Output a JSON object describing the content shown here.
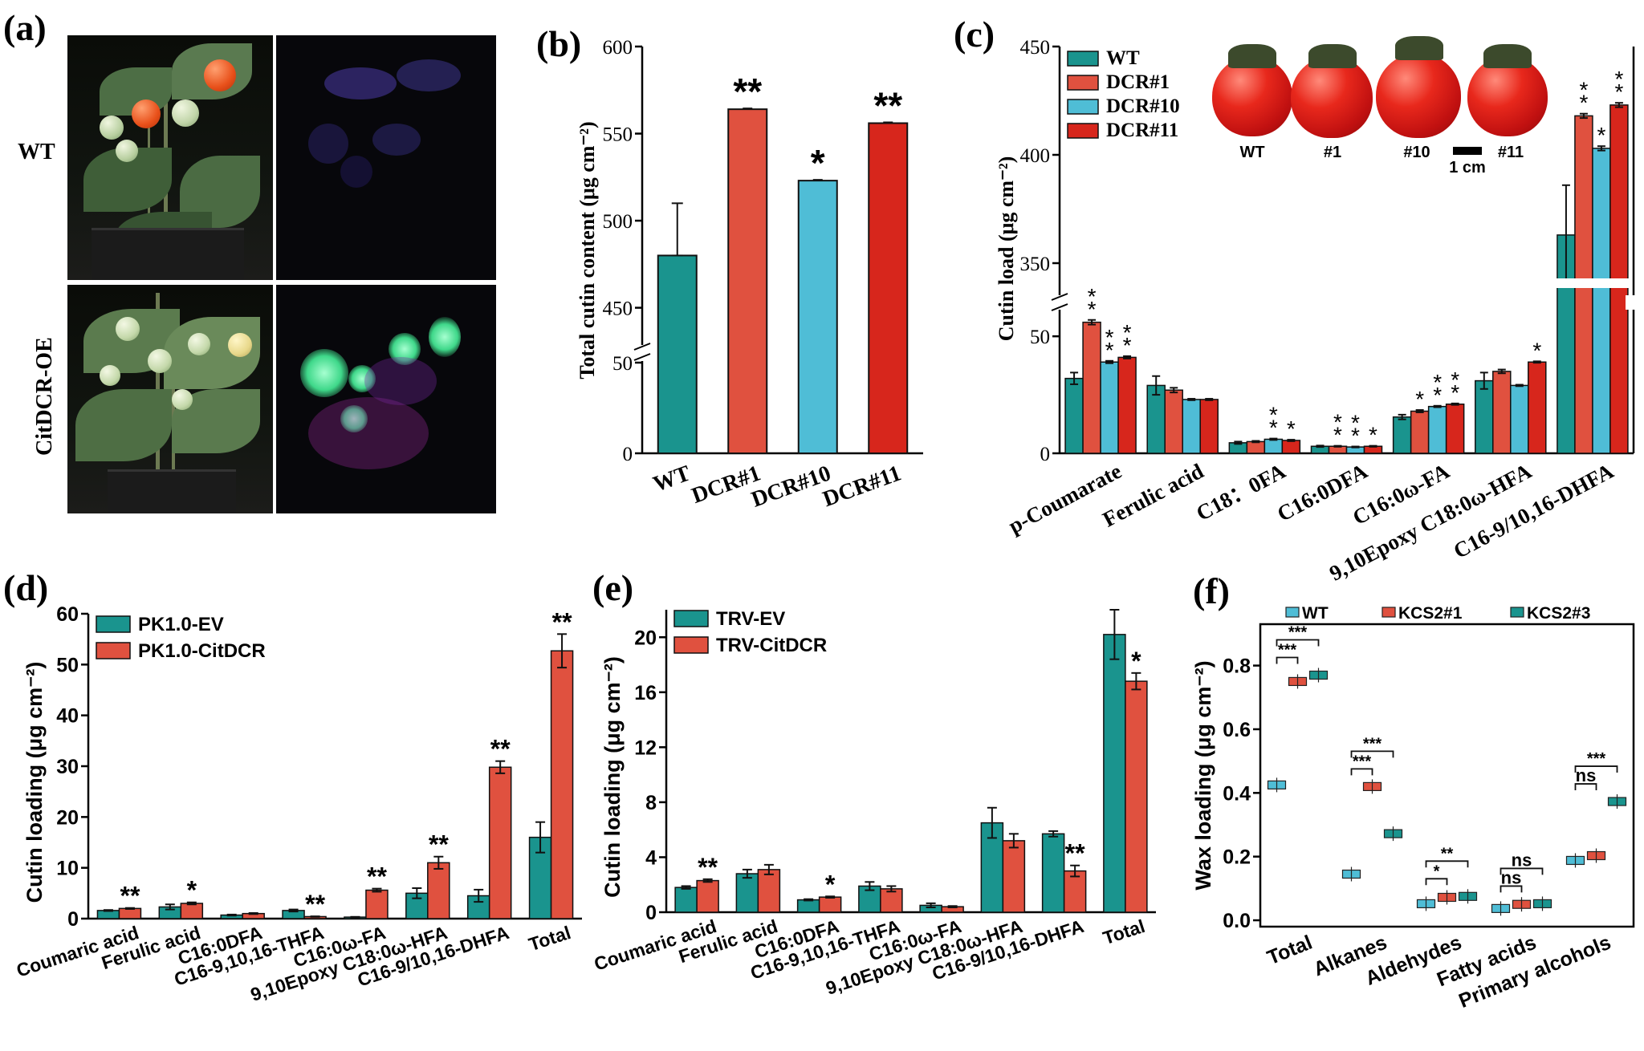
{
  "panel_labels": {
    "a": "(a)",
    "b": "(b)",
    "c": "(c)",
    "d": "(d)",
    "e": "(e)",
    "f": "(f)"
  },
  "panel_a": {
    "row_labels": [
      "WT",
      "CitDCR-OE"
    ]
  },
  "colors": {
    "teal": "#1a948e",
    "salmon": "#e0513f",
    "lightblue": "#4fbdd6",
    "red": "#d7261c"
  },
  "chart_data": [
    {
      "id": "b",
      "type": "bar",
      "ylabel": "Total cutin content (μg cm⁻²)",
      "categories": [
        "WT",
        "DCR#1",
        "DCR#10",
        "DCR#11"
      ],
      "values": [
        480,
        564,
        523,
        556
      ],
      "errors": [
        30,
        1,
        1,
        1
      ],
      "significance": [
        "",
        "**",
        "*",
        "**"
      ],
      "axis_break": {
        "lower": [
          0,
          50
        ],
        "upper": [
          430,
          600
        ]
      },
      "yticks": [
        0,
        50,
        450,
        500,
        550,
        600
      ]
    },
    {
      "id": "c",
      "type": "bar",
      "ylabel": "Cutin load (μg cm⁻²)",
      "categories": [
        "p-Coumarate",
        "Ferulic acid",
        "C18：0FA",
        "C16:0DFA",
        "C16:0ω-FA",
        "9,10Epoxy C18:0ω-HFA",
        "C16-9/10,16-DHFA"
      ],
      "series": [
        {
          "name": "WT",
          "values": [
            32,
            29,
            4.5,
            3,
            15.5,
            31,
            363
          ],
          "errors": [
            2.5,
            4,
            0.5,
            0.3,
            1,
            3.5,
            23
          ]
        },
        {
          "name": "DCR#1",
          "values": [
            56,
            27,
            5,
            3,
            18,
            35,
            418
          ],
          "errors": [
            1,
            1,
            0.3,
            0.2,
            0.5,
            0.8,
            1
          ]
        },
        {
          "name": "DCR#10",
          "values": [
            39,
            23,
            6,
            2.7,
            20,
            29,
            403
          ],
          "errors": [
            0.5,
            0.3,
            0.3,
            0.2,
            0.3,
            0.3,
            1
          ]
        },
        {
          "name": "DCR#11",
          "values": [
            41,
            23,
            5.5,
            3,
            21,
            39,
            423
          ],
          "errors": [
            0.5,
            0.3,
            0.3,
            0.2,
            0.3,
            0.3,
            1
          ]
        }
      ],
      "significance": [
        [
          "",
          "**",
          "**",
          "**"
        ],
        [
          "",
          "",
          "",
          ""
        ],
        [
          "",
          "",
          "**",
          "*"
        ],
        [
          "",
          "**",
          "**",
          "*"
        ],
        [
          "",
          "*",
          "**",
          "**"
        ],
        [
          "",
          "",
          "",
          "*"
        ],
        [
          "",
          "**",
          "*",
          "**"
        ]
      ],
      "axis_break": {
        "lower": [
          0,
          60
        ],
        "upper": [
          330,
          450
        ]
      },
      "yticks": [
        0,
        50,
        350,
        400,
        450
      ],
      "inset_labels": [
        "WT",
        "#1",
        "#10",
        "#11"
      ],
      "scale_bar": "1 cm"
    },
    {
      "id": "d",
      "type": "bar",
      "ylabel": "Cutin loading (μg cm⁻²)",
      "categories": [
        "Coumaric acid",
        "Ferulic acid",
        "C16:0DFA",
        "C16-9,10,16-THFA",
        "C16:0ω-FA",
        "9,10Epoxy C18:0ω-HFA",
        "C16-9/10,16-DHFA",
        "Total"
      ],
      "series": [
        {
          "name": "PK1.0-EV",
          "values": [
            1.6,
            2.3,
            0.7,
            1.6,
            0.3,
            5,
            4.5,
            16
          ],
          "errors": [
            0.1,
            0.5,
            0.1,
            0.2,
            0.05,
            1,
            1.2,
            3
          ]
        },
        {
          "name": "PK1.0-CitDCR",
          "values": [
            2,
            3,
            1,
            0.4,
            5.6,
            11,
            29.8,
            52.7
          ],
          "errors": [
            0.1,
            0.2,
            0.1,
            0.05,
            0.3,
            1.2,
            1.2,
            3.3
          ]
        }
      ],
      "significance": [
        "**",
        "*",
        "",
        "**",
        "**",
        "**",
        "**",
        "**"
      ],
      "ylim": [
        0,
        60
      ],
      "yticks": [
        0,
        10,
        20,
        30,
        40,
        50,
        60
      ]
    },
    {
      "id": "e",
      "type": "bar",
      "ylabel": "Cutin loading (μg cm⁻²)",
      "categories": [
        "Coumaric acid",
        "Ferulic acid",
        "C16:0DFA",
        "C16-9,10,16-THFA",
        "C16:0ω-FA",
        "9,10Epoxy C18:0ω-HFA",
        "C16-9/10,16-DHFA",
        "Total"
      ],
      "series": [
        {
          "name": "TRV-EV",
          "values": [
            1.8,
            2.8,
            0.9,
            1.9,
            0.5,
            6.5,
            5.7,
            20.2
          ],
          "errors": [
            0.1,
            0.3,
            0.05,
            0.3,
            0.15,
            1.1,
            0.2,
            1.8
          ]
        },
        {
          "name": "TRV-CitDCR",
          "values": [
            2.3,
            3.1,
            1.1,
            1.7,
            0.4,
            5.2,
            3,
            16.8
          ],
          "errors": [
            0.1,
            0.35,
            0.05,
            0.2,
            0.05,
            0.5,
            0.4,
            0.6
          ]
        }
      ],
      "significance": [
        "**",
        "",
        "*",
        "",
        "",
        "",
        "**",
        "*"
      ],
      "ylim": [
        0,
        22
      ],
      "yticks": [
        0,
        4,
        8,
        12,
        16,
        20
      ]
    },
    {
      "id": "f",
      "type": "box",
      "ylabel": "Wax loading (μg cm⁻²)",
      "categories": [
        "Total",
        "Alkanes",
        "Aldehydes",
        "Fatty acids",
        "Primary alcohols"
      ],
      "series": [
        {
          "name": "WT",
          "values": [
            0.425,
            0.145,
            0.052,
            0.037,
            0.188
          ]
        },
        {
          "name": "KCS2#1",
          "values": [
            0.75,
            0.42,
            0.072,
            0.05,
            0.203
          ]
        },
        {
          "name": "KCS2#3",
          "values": [
            0.77,
            0.272,
            0.075,
            0.052,
            0.373
          ]
        }
      ],
      "brackets": [
        [
          "***",
          "***"
        ],
        [
          "***",
          "***"
        ],
        [
          "*",
          "**"
        ],
        [
          "ns",
          "ns"
        ],
        [
          "ns",
          "***"
        ]
      ],
      "ylim": [
        -0.02,
        0.93
      ],
      "yticks": [
        0.0,
        0.2,
        0.4,
        0.6,
        0.8
      ]
    }
  ]
}
